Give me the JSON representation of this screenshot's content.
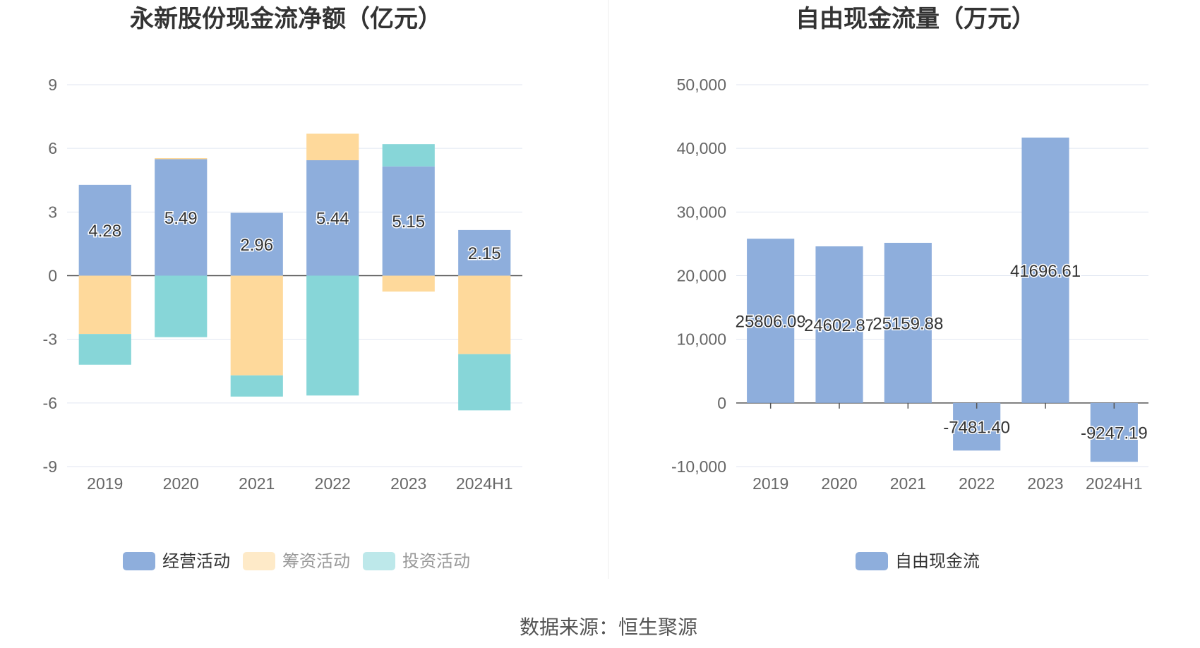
{
  "source": "数据来源：恒生聚源",
  "chart_data": [
    {
      "type": "bar",
      "stacked": true,
      "title": "永新股份现金流净额（亿元）",
      "categories": [
        "2019",
        "2020",
        "2021",
        "2022",
        "2023",
        "2024H1"
      ],
      "ylim": [
        -9,
        9
      ],
      "yticks": [
        9,
        6,
        3,
        0,
        -3,
        -6,
        -9
      ],
      "grid": true,
      "legend_position": "bottom",
      "series": [
        {
          "name": "经营活动",
          "color": "#8eaedc",
          "values": [
            4.28,
            5.49,
            2.96,
            5.44,
            5.15,
            2.15
          ],
          "labels": [
            "4.28",
            "5.49",
            "2.96",
            "5.44",
            "5.15",
            "2.15"
          ]
        },
        {
          "name": "筹资活动",
          "color": "#fed99b",
          "values": [
            -2.75,
            0.05,
            -4.7,
            1.25,
            -0.75,
            -3.7
          ]
        },
        {
          "name": "投资活动",
          "color": "#87d6d8",
          "values": [
            -1.45,
            -2.9,
            -1.0,
            -5.65,
            1.05,
            -2.65
          ]
        }
      ]
    },
    {
      "type": "bar",
      "title": "自由现金流量（万元）",
      "categories": [
        "2019",
        "2020",
        "2021",
        "2022",
        "2023",
        "2024H1"
      ],
      "ylim": [
        -10000,
        50000
      ],
      "yticks": [
        50000,
        40000,
        30000,
        20000,
        10000,
        0,
        -10000
      ],
      "ytick_labels": [
        "50,000",
        "40,000",
        "30,000",
        "20,000",
        "10,000",
        "0",
        "-10,000"
      ],
      "grid": true,
      "legend_position": "bottom",
      "series": [
        {
          "name": "自由现金流",
          "color": "#8eaedc",
          "values": [
            25806.09,
            24602.87,
            25159.88,
            -7481.4,
            41696.61,
            -9247.19
          ],
          "labels": [
            "25806.09",
            "24602.87",
            "25159.88",
            "-7481.40",
            "41696.61",
            "-9247.19"
          ]
        }
      ]
    }
  ]
}
